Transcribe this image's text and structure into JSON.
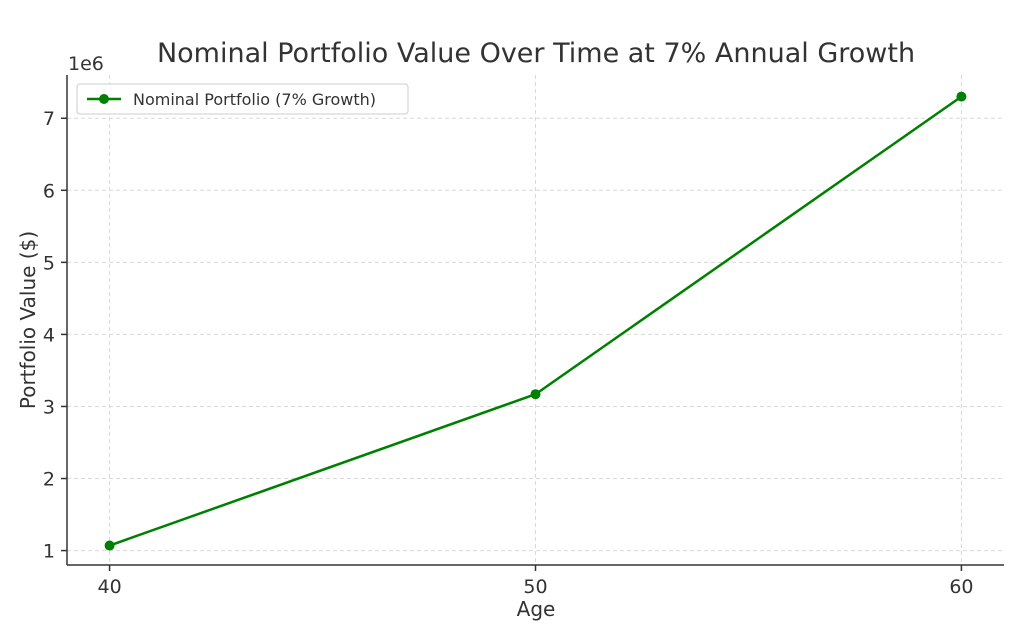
{
  "chart_data": {
    "type": "line",
    "title": "Nominal Portfolio Value Over Time at 7% Annual Growth",
    "xlabel": "Age",
    "ylabel": "Portfolio Value ($)",
    "y_offset_text": "1e6",
    "x": [
      40,
      50,
      60
    ],
    "x_ticks": [
      40,
      50,
      60
    ],
    "y_ticks": [
      1,
      2,
      3,
      4,
      5,
      6,
      7
    ],
    "xlim": [
      39,
      61
    ],
    "ylim": [
      0.8,
      7.6
    ],
    "series": [
      {
        "name": "Nominal Portfolio (7% Growth)",
        "values": [
          1.07,
          3.17,
          7.3
        ],
        "color": "#008000",
        "marker": "circle"
      }
    ],
    "grid": true,
    "legend_position": "top-left"
  }
}
